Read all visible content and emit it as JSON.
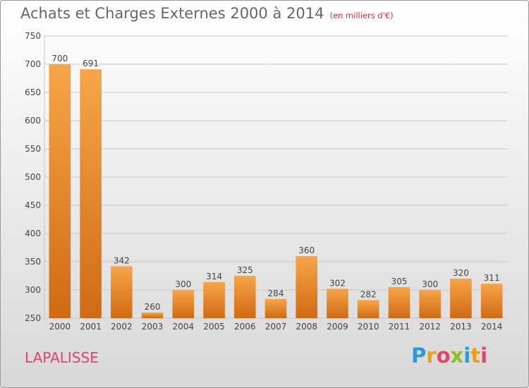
{
  "header": {
    "title": "Achats et Charges Externes 2000 à 2014",
    "unit": "(en milliers d'€)"
  },
  "commune": "LAPALISSE",
  "logo": {
    "text": "Proxiti",
    "letters": [
      {
        "char": "P",
        "color": "#2b9ad6"
      },
      {
        "char": "r",
        "color": "#e8a21a"
      },
      {
        "char": "o",
        "color": "#e0456a"
      },
      {
        "char": "x",
        "color": "#8bbf27"
      },
      {
        "char": "i",
        "color": "#2b9ad6"
      },
      {
        "char": "t",
        "color": "#e8a21a"
      },
      {
        "char": "i",
        "color": "#e0456a"
      }
    ]
  },
  "chart_data": {
    "type": "bar",
    "title": "Achats et Charges Externes 2000 à 2014",
    "categories": [
      "2000",
      "2001",
      "2002",
      "2003",
      "2004",
      "2005",
      "2006",
      "2007",
      "2008",
      "2009",
      "2010",
      "2011",
      "2012",
      "2013",
      "2014"
    ],
    "values": [
      700,
      691,
      342,
      260,
      300,
      314,
      325,
      284,
      360,
      302,
      282,
      305,
      300,
      320,
      311
    ],
    "ylim": [
      250,
      750
    ],
    "yticks": [
      250,
      300,
      350,
      400,
      450,
      500,
      550,
      600,
      650,
      700,
      750
    ],
    "grid": true,
    "colors": {
      "bar_top": "#f7a54a",
      "bar_bottom": "#d06a14",
      "grid": "#c8c8c8",
      "axis_text": "#444444"
    }
  }
}
